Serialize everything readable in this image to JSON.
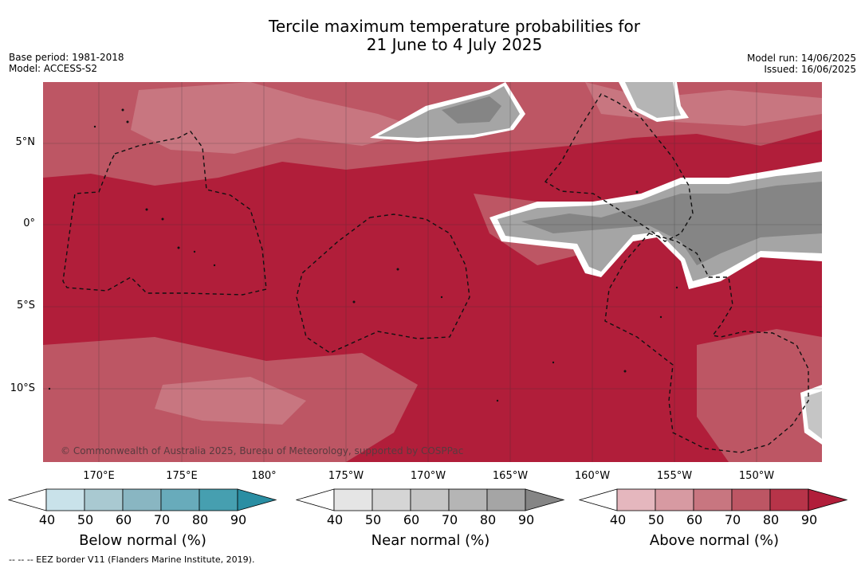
{
  "header": {
    "title_line1": "Tercile maximum temperature probabilities for",
    "title_line2": "21 June to 4 July 2025",
    "base_period": "Base period: 1981-2018",
    "model": "Model: ACCESS-S2",
    "model_run": "Model run: 14/06/2025",
    "issued": "Issued: 16/06/2025"
  },
  "map": {
    "lat_labels": [
      "5°N",
      "0°",
      "5°S",
      "10°S"
    ],
    "lon_labels": [
      "170°E",
      "175°E",
      "180°",
      "175°W",
      "170°W",
      "165°W",
      "160°W",
      "155°W",
      "150°W"
    ],
    "credit": "© Commonwealth of Australia 2025, Bureau of Meteorology, supported by COSPPac"
  },
  "colorbars": [
    {
      "title": "Below normal (%)",
      "ticks": [
        "40",
        "50",
        "60",
        "70",
        "80",
        "90"
      ],
      "colors": [
        "#ffffff",
        "#c9e2ea",
        "#a9c9d1",
        "#89b6c2",
        "#68abbb",
        "#469fb0",
        "#2a8ea3"
      ]
    },
    {
      "title": "Near normal (%)",
      "ticks": [
        "40",
        "50",
        "60",
        "70",
        "80",
        "90"
      ],
      "colors": [
        "#ffffff",
        "#e5e5e5",
        "#d5d5d5",
        "#c5c5c5",
        "#b5b5b5",
        "#a5a5a5",
        "#858585"
      ]
    },
    {
      "title": "Above normal (%)",
      "ticks": [
        "40",
        "50",
        "60",
        "70",
        "80",
        "90"
      ],
      "colors": [
        "#ffffff",
        "#e5b7be",
        "#d79aa2",
        "#c87680",
        "#bd5664",
        "#b73449",
        "#b11e3a"
      ]
    }
  ],
  "footnote": "--  --  -- EEZ border V11 (Flanders Marine Institute, 2019)."
}
